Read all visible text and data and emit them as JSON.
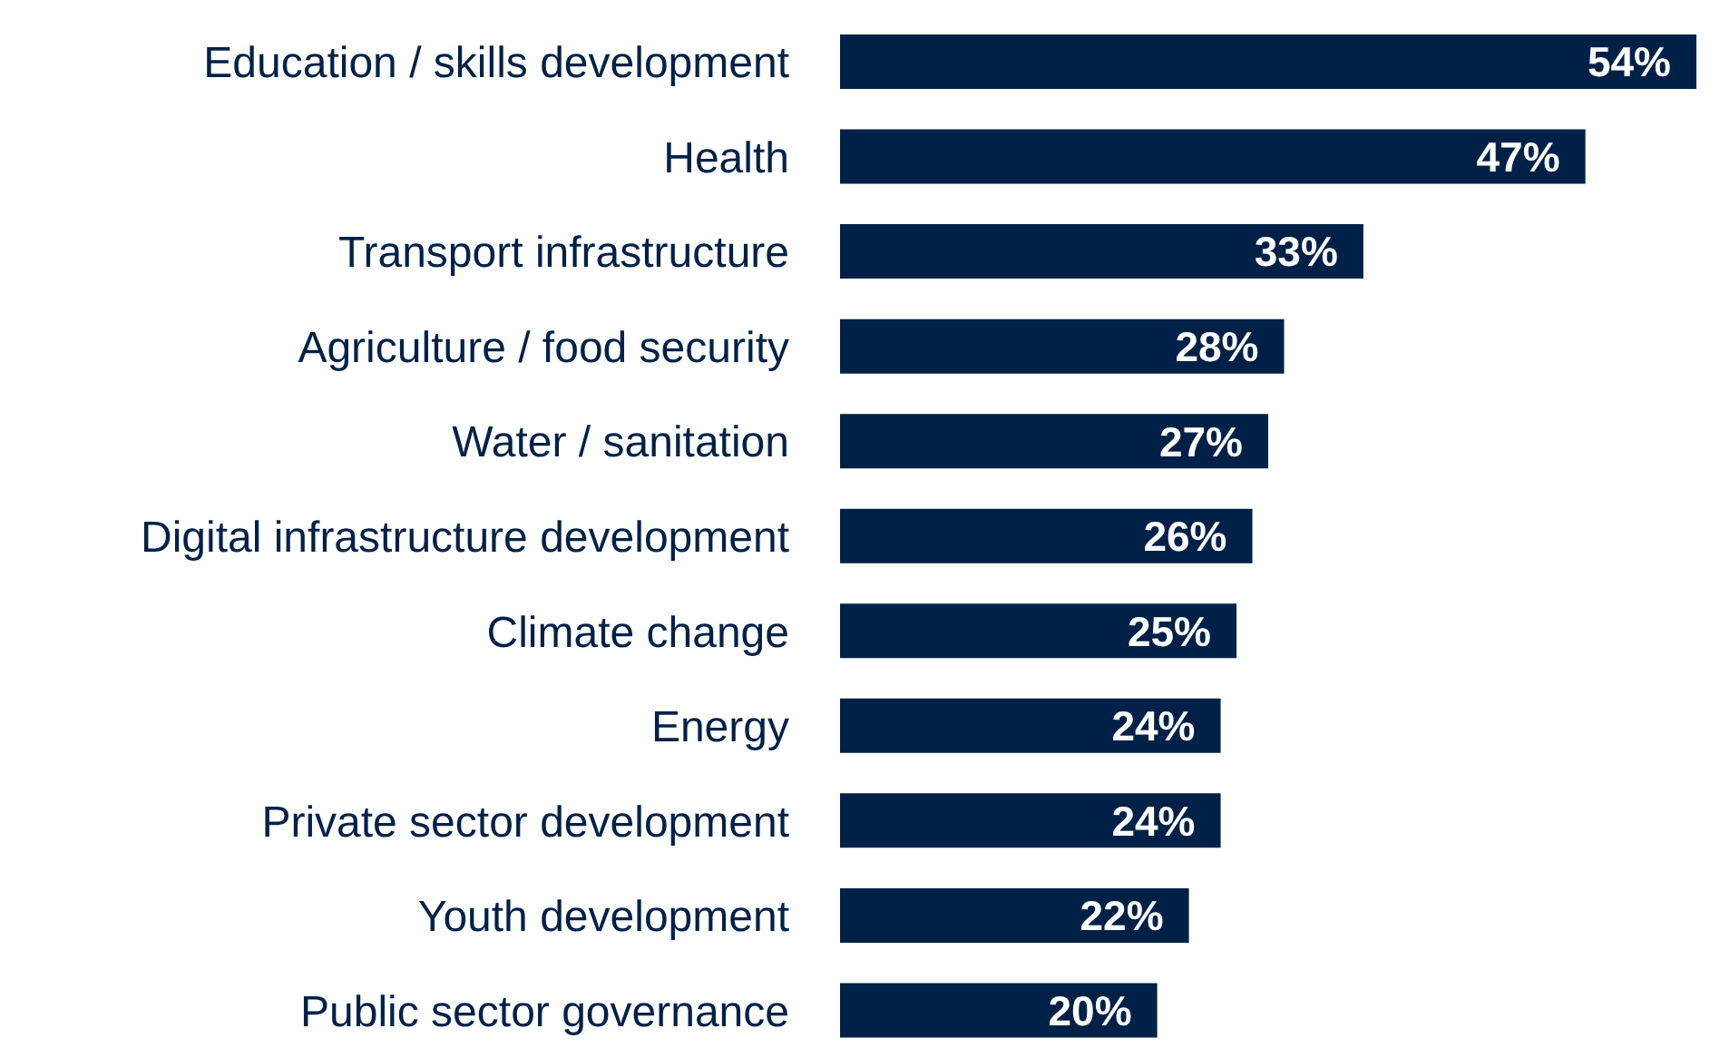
{
  "chart_data": {
    "type": "bar",
    "orientation": "horizontal",
    "categories": [
      "Education / skills development",
      "Health",
      "Transport infrastructure",
      "Agriculture / food security",
      "Water / sanitation",
      "Digital infrastructure development",
      "Climate change",
      "Energy",
      "Private sector development",
      "Youth development",
      "Public sector governance"
    ],
    "values": [
      54,
      47,
      33,
      28,
      27,
      26,
      25,
      24,
      24,
      22,
      20
    ],
    "value_labels": [
      "54%",
      "47%",
      "33%",
      "28%",
      "27%",
      "26%",
      "25%",
      "24%",
      "24%",
      "22%",
      "20%"
    ],
    "color": "#002147"
  }
}
